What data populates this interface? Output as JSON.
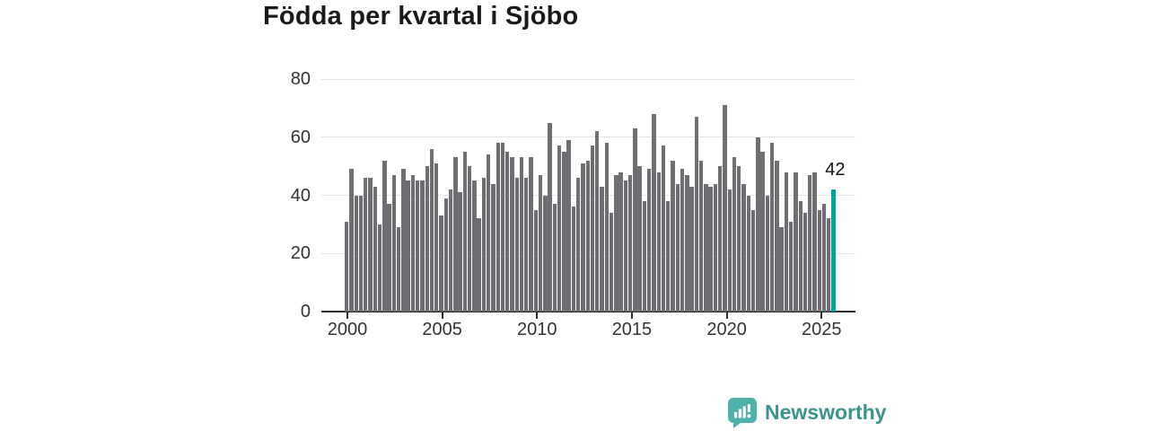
{
  "title": "Födda per kvartal i Sjöbo",
  "annotation": {
    "last_value_label": "42"
  },
  "branding": {
    "name": "Newsworthy",
    "icon": "newsworthy-speech-bubble-chart-icon",
    "text_color": "#3a938c",
    "icon_color": "#4cb2aa"
  },
  "colors": {
    "bar": "#6e6e73",
    "highlight": "#00a49a",
    "axis": "#2e2e2e",
    "grid": "#e3e3e3",
    "label": "#333333",
    "title": "#1a1a1a"
  },
  "chart_data": {
    "type": "bar",
    "title": "Födda per kvartal i Sjöbo",
    "xlabel": "",
    "ylabel": "",
    "ylim": [
      0,
      80
    ],
    "grid": true,
    "legend": "none",
    "start_quarter": "2000-Q1",
    "end_quarter": "2025-Q4",
    "highlight_last_bar": true,
    "y_ticks": [
      0,
      20,
      40,
      60,
      80
    ],
    "x_tick_years": [
      "2000",
      "2005",
      "2010",
      "2015",
      "2020",
      "2025"
    ],
    "values": [
      31,
      49,
      40,
      40,
      46,
      46,
      43,
      30,
      52,
      37,
      47,
      29,
      49,
      45,
      47,
      45,
      45,
      50,
      56,
      51,
      33,
      39,
      42,
      53,
      41,
      55,
      50,
      45,
      32,
      46,
      54,
      44,
      58,
      58,
      55,
      53,
      46,
      53,
      46,
      53,
      35,
      47,
      40,
      65,
      37,
      57,
      55,
      59,
      36,
      46,
      51,
      52,
      57,
      62,
      43,
      58,
      34,
      47,
      48,
      45,
      47,
      63,
      50,
      38,
      49,
      68,
      48,
      57,
      38,
      52,
      44,
      49,
      47,
      43,
      67,
      52,
      44,
      43,
      44,
      50,
      71,
      42,
      53,
      50,
      44,
      40,
      35,
      60,
      55,
      40,
      58,
      52,
      29,
      48,
      31,
      48,
      38,
      34,
      47,
      48,
      35,
      37,
      32,
      42
    ]
  }
}
